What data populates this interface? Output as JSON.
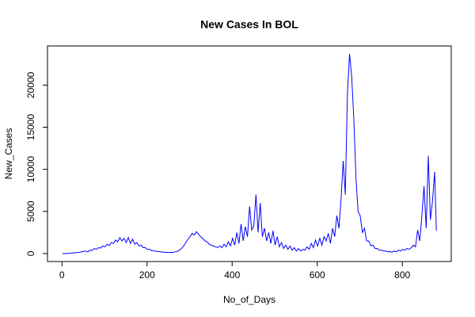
{
  "chart_data": {
    "type": "line",
    "title": "New Cases In BOL",
    "x_label": "No_of_Days",
    "y_label": "New_Cases",
    "x": [
      1,
      6,
      11,
      16,
      21,
      26,
      31,
      36,
      41,
      46,
      51,
      56,
      61,
      66,
      71,
      76,
      81,
      86,
      91,
      96,
      101,
      106,
      111,
      116,
      121,
      126,
      131,
      136,
      141,
      146,
      151,
      156,
      161,
      166,
      171,
      176,
      181,
      186,
      191,
      196,
      201,
      206,
      211,
      216,
      221,
      226,
      231,
      236,
      241,
      246,
      251,
      256,
      261,
      266,
      271,
      276,
      281,
      286,
      291,
      296,
      301,
      306,
      311,
      316,
      321,
      326,
      331,
      336,
      341,
      346,
      351,
      356,
      361,
      366,
      371,
      376,
      381,
      386,
      391,
      396,
      401,
      406,
      411,
      416,
      421,
      426,
      431,
      436,
      441,
      446,
      451,
      456,
      461,
      466,
      471,
      476,
      481,
      486,
      491,
      496,
      501,
      506,
      511,
      516,
      521,
      526,
      531,
      536,
      541,
      546,
      551,
      556,
      561,
      566,
      571,
      576,
      581,
      586,
      591,
      596,
      601,
      606,
      611,
      616,
      621,
      626,
      631,
      636,
      641,
      646,
      651,
      656,
      661,
      666,
      671,
      676,
      681,
      686,
      691,
      696,
      701,
      706,
      711,
      716,
      721,
      726,
      731,
      736,
      741,
      746,
      751,
      756,
      761,
      766,
      771,
      776,
      781,
      786,
      791,
      796,
      801,
      806,
      811,
      816,
      821,
      826,
      831,
      836,
      841,
      846,
      851,
      856,
      861,
      866,
      871,
      876,
      880
    ],
    "series": [
      {
        "name": "New_Cases",
        "color": "#0000ff",
        "values": [
          0,
          0,
          10,
          30,
          50,
          80,
          100,
          120,
          150,
          200,
          250,
          300,
          200,
          400,
          350,
          600,
          500,
          700,
          650,
          900,
          800,
          1100,
          950,
          1300,
          1200,
          1600,
          1400,
          1900,
          1500,
          1800,
          1300,
          1900,
          1200,
          1700,
          1100,
          1300,
          900,
          1000,
          700,
          700,
          500,
          500,
          350,
          350,
          250,
          250,
          200,
          180,
          150,
          150,
          120,
          150,
          130,
          200,
          250,
          400,
          600,
          900,
          1300,
          1700,
          2000,
          2400,
          2200,
          2600,
          2300,
          2000,
          1800,
          1500,
          1400,
          1100,
          1000,
          900,
          800,
          700,
          900,
          700,
          1100,
          800,
          1400,
          900,
          1800,
          1000,
          2500,
          1200,
          3500,
          1500,
          3200,
          2000,
          5600,
          2800,
          3300,
          7000,
          2500,
          6000,
          2000,
          3000,
          1500,
          2500,
          1200,
          2700,
          1000,
          2000,
          800,
          1300,
          600,
          1000,
          500,
          900,
          400,
          700,
          300,
          600,
          300,
          500,
          400,
          800,
          500,
          1200,
          700,
          1600,
          900,
          1800,
          1000,
          2000,
          1500,
          2400,
          1200,
          3000,
          2000,
          4500,
          3000,
          6500,
          11000,
          7000,
          19000,
          23700,
          21000,
          16000,
          9000,
          5000,
          4500,
          2500,
          3000,
          1500,
          1500,
          900,
          1000,
          600,
          600,
          400,
          400,
          300,
          300,
          200,
          250,
          150,
          300,
          200,
          400,
          300,
          500,
          400,
          600,
          500,
          700,
          1000,
          800,
          2800,
          1500,
          4500,
          8000,
          3000,
          11600,
          4000,
          6300,
          9700,
          2700
        ]
      }
    ],
    "xlim": [
      -34,
      915
    ],
    "ylim": [
      -948,
      24648
    ],
    "xticks": [
      0,
      200,
      400,
      600,
      800
    ],
    "yticks": [
      0,
      5000,
      10000,
      15000,
      20000
    ]
  }
}
